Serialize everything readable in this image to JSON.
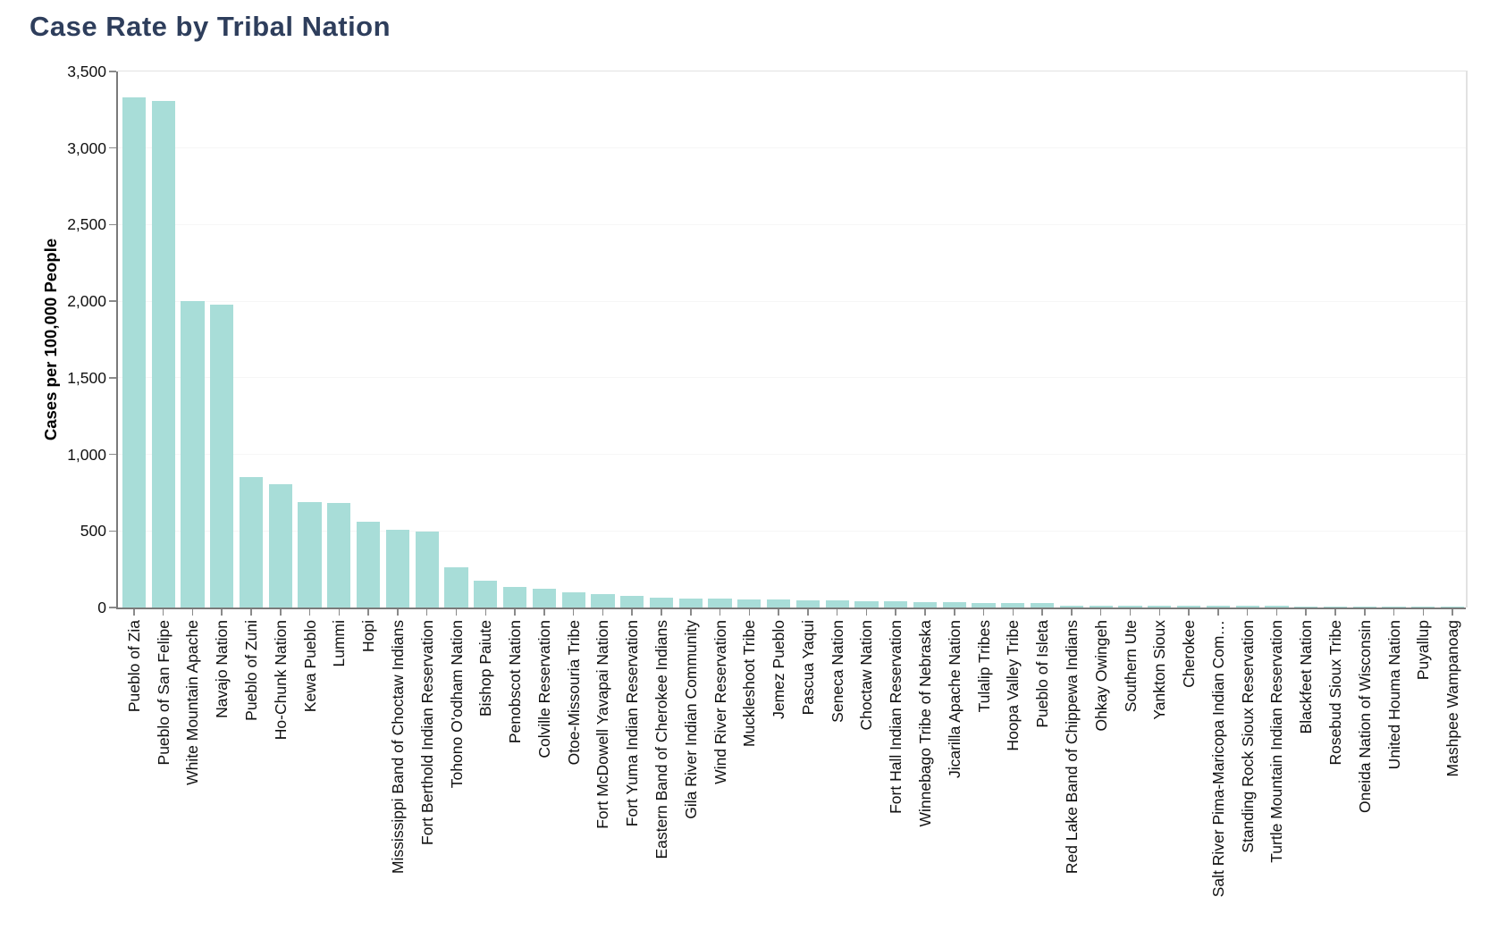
{
  "page": {
    "title": "Case Rate by Tribal Nation"
  },
  "colors": {
    "background": "#ffffff",
    "title_text": "#2e3e5c",
    "bar_fill": "#a8ddd8",
    "axis_line": "#7a7a7a",
    "tick_mark": "#8a8a8a",
    "gridline": "#f6f6f6",
    "plot_border": "#e2e2e2",
    "tick_label_text": "#111111"
  },
  "chart_data": {
    "type": "bar",
    "title": "Case Rate by Tribal Nation",
    "xlabel": "",
    "ylabel": "Cases per 100,000 People",
    "ylim": [
      0,
      3500
    ],
    "yticks": [
      0,
      500,
      1000,
      1500,
      2000,
      2500,
      3000,
      3500
    ],
    "grid": "horizontal-faint",
    "legend": "none",
    "categories": [
      "Pueblo of Zia",
      "Pueblo of San Felipe",
      "White Mountain Apache",
      "Navajo Nation",
      "Pueblo of Zuni",
      "Ho-Chunk Nation",
      "Kewa Pueblo",
      "Lummi",
      "Hopi",
      "Mississippi Band of Choctaw Indians",
      "Fort Berthold Indian Reservation",
      "Tohono O'odham Nation",
      "Bishop Paiute",
      "Penobscot Nation",
      "Colville Reservation",
      "Otoe-Missouria Tribe",
      "Fort McDowell Yavapai Nation",
      "Fort Yuma Indian Reservation",
      "Eastern Band of Cherokee Indians",
      "Gila River Indian Community",
      "Wind River Reservation",
      "Muckleshoot Tribe",
      "Jemez Pueblo",
      "Pascua Yaqui",
      "Seneca Nation",
      "Choctaw Nation",
      "Fort Hall Indian Reservation",
      "Winnebago Tribe of Nebraska",
      "Jicarilla Apache Nation",
      "Tulalip Tribes",
      "Hoopa Valley Tribe",
      "Pueblo of Isleta",
      "Red Lake Band of Chippewa Indians",
      "Ohkay Owingeh",
      "Southern Ute",
      "Yankton Sioux",
      "Cherokee",
      "Salt River Pima-Maricopa Indian Com…",
      "Standing Rock Sioux Reservation",
      "Turtle Mountain Indian Reservation",
      "Blackfeet Nation",
      "Rosebud Sioux Tribe",
      "Oneida Nation of Wisconsin",
      "United Houma Nation",
      "Puyallup",
      "Mashpee Wampanoag"
    ],
    "values": [
      3330,
      3305,
      2000,
      1975,
      850,
      805,
      690,
      680,
      560,
      510,
      495,
      260,
      175,
      132,
      120,
      98,
      85,
      74,
      64,
      61,
      57,
      52,
      51,
      49,
      45,
      41,
      39,
      37,
      34,
      32,
      30,
      28,
      14,
      12,
      11,
      11,
      10,
      10,
      9,
      9,
      8,
      8,
      7,
      6,
      5,
      5
    ]
  }
}
